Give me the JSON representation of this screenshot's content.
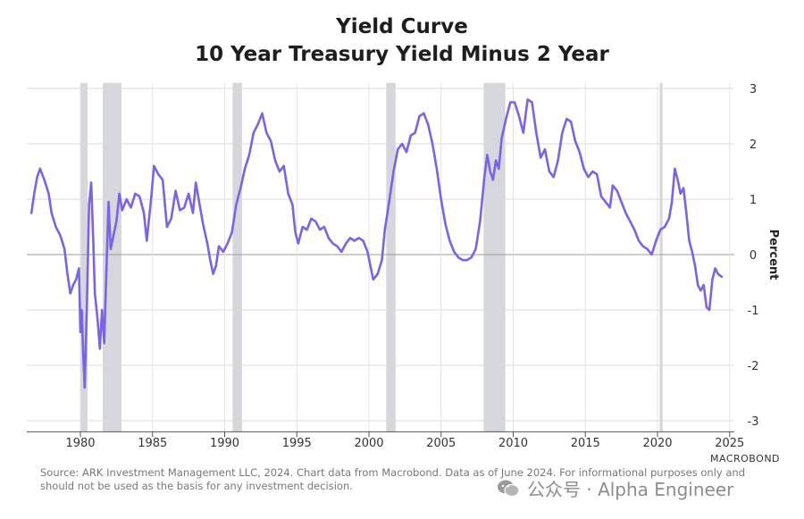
{
  "chart_data": {
    "type": "line",
    "title": "Yield Curve",
    "subtitle": "10 Year Treasury Yield Minus 2 Year",
    "ylabel": "Percent",
    "xlim": [
      1976.5,
      2025.3
    ],
    "ylim": [
      -3.2,
      3.1
    ],
    "y_ticks": [
      "3",
      "2",
      "1",
      "0",
      "-1",
      "-2",
      "-3"
    ],
    "x_ticks": [
      "1980",
      "1985",
      "1990",
      "1995",
      "2000",
      "2005",
      "2010",
      "2015",
      "2020",
      "2025"
    ],
    "grid": true,
    "recessions": [
      [
        1980.0,
        1980.5
      ],
      [
        1981.55,
        1982.85
      ],
      [
        1990.55,
        1991.2
      ],
      [
        2001.2,
        2001.85
      ],
      [
        2007.95,
        2009.45
      ],
      [
        2020.15,
        2020.35
      ]
    ],
    "series": [
      {
        "color": "#7B63E8",
        "points": [
          [
            1976.6,
            0.75
          ],
          [
            1976.8,
            1.1
          ],
          [
            1977.0,
            1.4
          ],
          [
            1977.2,
            1.55
          ],
          [
            1977.5,
            1.35
          ],
          [
            1977.8,
            1.1
          ],
          [
            1978.0,
            0.75
          ],
          [
            1978.3,
            0.5
          ],
          [
            1978.6,
            0.35
          ],
          [
            1978.9,
            0.1
          ],
          [
            1979.1,
            -0.35
          ],
          [
            1979.3,
            -0.7
          ],
          [
            1979.5,
            -0.55
          ],
          [
            1979.7,
            -0.45
          ],
          [
            1979.9,
            -0.25
          ],
          [
            1980.0,
            -1.4
          ],
          [
            1980.1,
            -1.0
          ],
          [
            1980.2,
            -1.8
          ],
          [
            1980.3,
            -2.4
          ],
          [
            1980.45,
            -0.9
          ],
          [
            1980.6,
            0.9
          ],
          [
            1980.75,
            1.3
          ],
          [
            1980.9,
            0.2
          ],
          [
            1981.0,
            -0.7
          ],
          [
            1981.2,
            -1.2
          ],
          [
            1981.35,
            -1.7
          ],
          [
            1981.5,
            -1.0
          ],
          [
            1981.65,
            -1.6
          ],
          [
            1981.8,
            -0.3
          ],
          [
            1981.95,
            0.95
          ],
          [
            1982.1,
            0.1
          ],
          [
            1982.3,
            0.35
          ],
          [
            1982.5,
            0.6
          ],
          [
            1982.7,
            1.1
          ],
          [
            1982.9,
            0.8
          ],
          [
            1983.2,
            1.0
          ],
          [
            1983.5,
            0.85
          ],
          [
            1983.8,
            1.1
          ],
          [
            1984.1,
            1.05
          ],
          [
            1984.4,
            0.75
          ],
          [
            1984.6,
            0.25
          ],
          [
            1984.9,
            1.0
          ],
          [
            1985.1,
            1.6
          ],
          [
            1985.4,
            1.45
          ],
          [
            1985.7,
            1.35
          ],
          [
            1986.0,
            0.5
          ],
          [
            1986.3,
            0.65
          ],
          [
            1986.6,
            1.15
          ],
          [
            1986.9,
            0.8
          ],
          [
            1987.2,
            0.85
          ],
          [
            1987.5,
            1.1
          ],
          [
            1987.8,
            0.75
          ],
          [
            1988.0,
            1.3
          ],
          [
            1988.2,
            1.0
          ],
          [
            1988.5,
            0.55
          ],
          [
            1988.8,
            0.2
          ],
          [
            1989.0,
            -0.1
          ],
          [
            1989.2,
            -0.35
          ],
          [
            1989.4,
            -0.2
          ],
          [
            1989.6,
            0.15
          ],
          [
            1989.9,
            0.05
          ],
          [
            1990.2,
            0.2
          ],
          [
            1990.5,
            0.4
          ],
          [
            1990.8,
            0.9
          ],
          [
            1991.1,
            1.2
          ],
          [
            1991.4,
            1.55
          ],
          [
            1991.7,
            1.8
          ],
          [
            1992.0,
            2.2
          ],
          [
            1992.3,
            2.35
          ],
          [
            1992.6,
            2.55
          ],
          [
            1992.9,
            2.2
          ],
          [
            1993.2,
            2.05
          ],
          [
            1993.5,
            1.7
          ],
          [
            1993.8,
            1.5
          ],
          [
            1994.1,
            1.6
          ],
          [
            1994.4,
            1.1
          ],
          [
            1994.7,
            0.9
          ],
          [
            1994.9,
            0.4
          ],
          [
            1995.1,
            0.2
          ],
          [
            1995.4,
            0.5
          ],
          [
            1995.7,
            0.45
          ],
          [
            1996.0,
            0.65
          ],
          [
            1996.3,
            0.6
          ],
          [
            1996.6,
            0.45
          ],
          [
            1996.9,
            0.5
          ],
          [
            1997.2,
            0.3
          ],
          [
            1997.5,
            0.2
          ],
          [
            1997.8,
            0.15
          ],
          [
            1998.1,
            0.05
          ],
          [
            1998.4,
            0.2
          ],
          [
            1998.7,
            0.3
          ],
          [
            1999.0,
            0.25
          ],
          [
            1999.3,
            0.3
          ],
          [
            1999.6,
            0.25
          ],
          [
            1999.9,
            0.05
          ],
          [
            2000.1,
            -0.2
          ],
          [
            2000.3,
            -0.45
          ],
          [
            2000.6,
            -0.35
          ],
          [
            2000.9,
            -0.1
          ],
          [
            2001.1,
            0.45
          ],
          [
            2001.4,
            0.95
          ],
          [
            2001.7,
            1.5
          ],
          [
            2002.0,
            1.9
          ],
          [
            2002.3,
            2.0
          ],
          [
            2002.6,
            1.85
          ],
          [
            2002.9,
            2.15
          ],
          [
            2003.2,
            2.2
          ],
          [
            2003.5,
            2.5
          ],
          [
            2003.8,
            2.55
          ],
          [
            2004.1,
            2.35
          ],
          [
            2004.4,
            2.0
          ],
          [
            2004.7,
            1.55
          ],
          [
            2005.0,
            1.0
          ],
          [
            2005.3,
            0.55
          ],
          [
            2005.6,
            0.25
          ],
          [
            2005.9,
            0.05
          ],
          [
            2006.2,
            -0.05
          ],
          [
            2006.5,
            -0.1
          ],
          [
            2006.8,
            -0.1
          ],
          [
            2007.1,
            -0.05
          ],
          [
            2007.4,
            0.1
          ],
          [
            2007.7,
            0.6
          ],
          [
            2008.0,
            1.4
          ],
          [
            2008.2,
            1.8
          ],
          [
            2008.4,
            1.5
          ],
          [
            2008.6,
            1.35
          ],
          [
            2008.8,
            1.7
          ],
          [
            2009.0,
            1.55
          ],
          [
            2009.2,
            2.1
          ],
          [
            2009.5,
            2.45
          ],
          [
            2009.8,
            2.75
          ],
          [
            2010.1,
            2.75
          ],
          [
            2010.4,
            2.5
          ],
          [
            2010.7,
            2.2
          ],
          [
            2011.0,
            2.8
          ],
          [
            2011.3,
            2.75
          ],
          [
            2011.6,
            2.2
          ],
          [
            2011.9,
            1.75
          ],
          [
            2012.2,
            1.9
          ],
          [
            2012.5,
            1.5
          ],
          [
            2012.8,
            1.4
          ],
          [
            2013.1,
            1.7
          ],
          [
            2013.4,
            2.2
          ],
          [
            2013.7,
            2.45
          ],
          [
            2014.0,
            2.4
          ],
          [
            2014.3,
            2.05
          ],
          [
            2014.6,
            1.85
          ],
          [
            2014.9,
            1.55
          ],
          [
            2015.2,
            1.4
          ],
          [
            2015.5,
            1.5
          ],
          [
            2015.8,
            1.45
          ],
          [
            2016.1,
            1.05
          ],
          [
            2016.4,
            0.95
          ],
          [
            2016.7,
            0.85
          ],
          [
            2016.9,
            1.25
          ],
          [
            2017.2,
            1.15
          ],
          [
            2017.5,
            0.95
          ],
          [
            2017.8,
            0.75
          ],
          [
            2018.1,
            0.6
          ],
          [
            2018.4,
            0.45
          ],
          [
            2018.7,
            0.25
          ],
          [
            2019.0,
            0.15
          ],
          [
            2019.3,
            0.1
          ],
          [
            2019.6,
            0.0
          ],
          [
            2019.9,
            0.25
          ],
          [
            2020.2,
            0.45
          ],
          [
            2020.5,
            0.5
          ],
          [
            2020.8,
            0.65
          ],
          [
            2021.0,
            0.95
          ],
          [
            2021.2,
            1.55
          ],
          [
            2021.4,
            1.35
          ],
          [
            2021.6,
            1.1
          ],
          [
            2021.8,
            1.2
          ],
          [
            2022.0,
            0.75
          ],
          [
            2022.2,
            0.25
          ],
          [
            2022.4,
            0.05
          ],
          [
            2022.6,
            -0.2
          ],
          [
            2022.8,
            -0.55
          ],
          [
            2023.0,
            -0.65
          ],
          [
            2023.2,
            -0.55
          ],
          [
            2023.4,
            -0.95
          ],
          [
            2023.6,
            -1.0
          ],
          [
            2023.8,
            -0.45
          ],
          [
            2024.0,
            -0.25
          ],
          [
            2024.2,
            -0.35
          ],
          [
            2024.45,
            -0.4
          ]
        ]
      }
    ]
  },
  "footer": {
    "source": "Source: ARK Investment Management LLC, 2024. Chart data from Macrobond. Data as of June 2024. For informational purposes only and should not be used as the basis for any investment decision.",
    "brand": "MACROBOND"
  },
  "watermark": {
    "text": "公众号 · Alpha Engineer"
  }
}
